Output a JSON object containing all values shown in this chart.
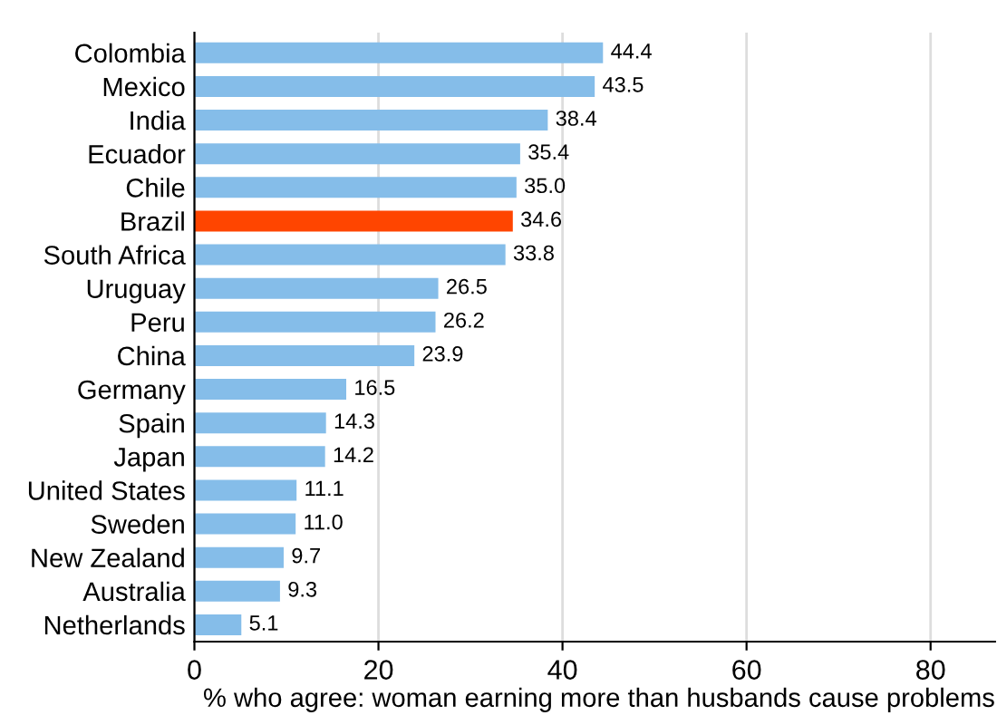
{
  "chart_data": {
    "type": "bar",
    "orientation": "horizontal",
    "xlabel": "% who agree: woman earning more than husbands cause problems",
    "categories": [
      "Colombia",
      "Mexico",
      "India",
      "Ecuador",
      "Chile",
      "Brazil",
      "South Africa",
      "Uruguay",
      "Peru",
      "China",
      "Germany",
      "Spain",
      "Japan",
      "United States",
      "Sweden",
      "New Zealand",
      "Australia",
      "Netherlands"
    ],
    "values": [
      44.4,
      43.5,
      38.4,
      35.4,
      35.0,
      34.6,
      33.8,
      26.5,
      26.2,
      23.9,
      16.5,
      14.3,
      14.2,
      11.1,
      11.0,
      9.7,
      9.3,
      5.1
    ],
    "value_labels": [
      "44.4",
      "43.5",
      "38.4",
      "35.4",
      "35.0",
      "34.6",
      "33.8",
      "26.5",
      "26.2",
      "23.9",
      "16.5",
      "14.3",
      "14.2",
      "11.1",
      "11.0",
      "9.7",
      "9.3",
      "5.1"
    ],
    "colors": [
      "#85bde9",
      "#85bde9",
      "#85bde9",
      "#85bde9",
      "#85bde9",
      "#ff4500",
      "#85bde9",
      "#85bde9",
      "#85bde9",
      "#85bde9",
      "#85bde9",
      "#85bde9",
      "#85bde9",
      "#85bde9",
      "#85bde9",
      "#85bde9",
      "#85bde9",
      "#85bde9"
    ],
    "xlim": [
      0,
      87
    ],
    "xticks": [
      0,
      20,
      40,
      60,
      80
    ],
    "grid": "x"
  }
}
